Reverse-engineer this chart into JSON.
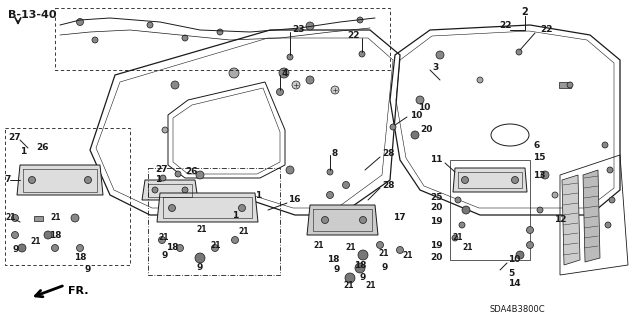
{
  "bg_color": "#ffffff",
  "line_color": "#1a1a1a",
  "diagram_code": "B-13-40",
  "catalog_code": "SDA4B3800C",
  "figsize": [
    6.4,
    3.19
  ],
  "dpi": 100
}
